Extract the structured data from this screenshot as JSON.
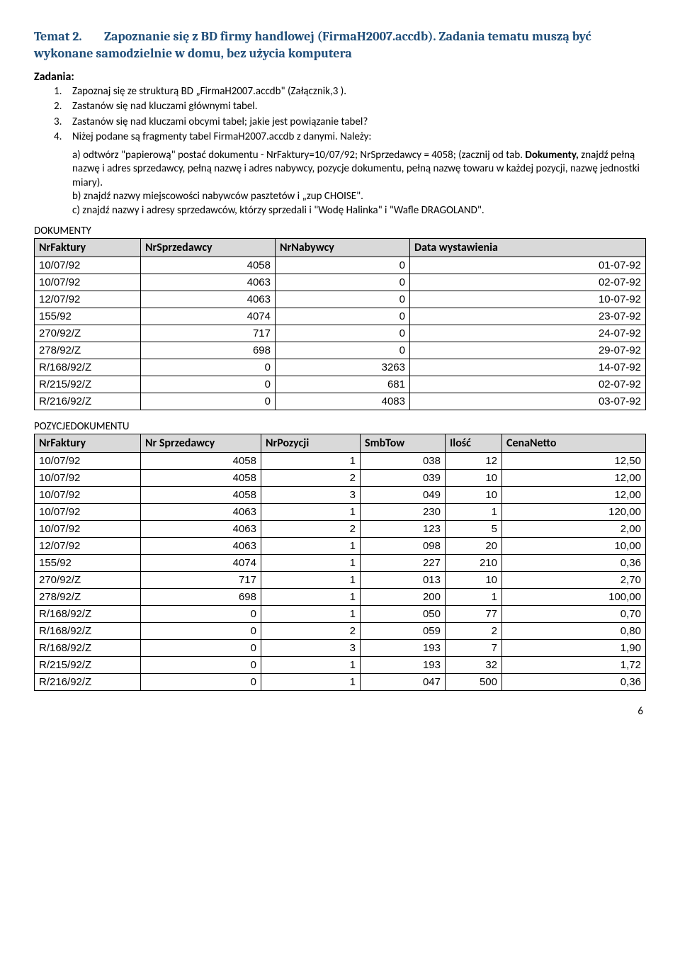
{
  "title": {
    "label": "Temat 2.",
    "heading": "Zapoznanie się z BD firmy handlowej (FirmaH2007.accdb). Zadania tematu muszą być wykonane samodzielnie w domu, bez użycia komputera"
  },
  "zadania_label": "Zadania:",
  "tasks": [
    "Zapoznaj się ze strukturą BD „FirmaH2007.accdb\" (Załącznik,3 ).",
    "Zastanów się nad kluczami głównymi tabel.",
    "Zastanów się nad kluczami obcymi tabel; jakie jest powiązanie tabel?",
    "Niżej podane są fragmenty tabel FirmaH2007.accdb z danymi. Należy:"
  ],
  "task4_body": {
    "a_pre": "a)  odtwórz \"papierową\" postać dokumentu -  NrFaktury=10/07/92;  NrSprzedawcy = 4058; (zacznij od  tab. ",
    "a_bold": "Dokumenty,",
    "a_post": " znajdź pełną nazwę i adres sprzedawcy, pełną nazwę i adres nabywcy, pozycje dokumentu, pełną nazwę towaru w każdej pozycji, nazwę jednostki miary).",
    "b": "b)  znajdź nazwy miejscowości nabywców pasztetów i „zup CHOISE\".",
    "c": "c)  znajdź nazwy i adresy sprzedawców, którzy sprzedali i \"Wodę Halinka\" i \"Wafle DRAGOLAND\"."
  },
  "section_dokumenty": "DOKUMENTY",
  "dokumenty_headers": [
    "NrFaktury",
    "NrSprzedawcy",
    "NrNabywcy",
    "Data wystawienia"
  ],
  "dokumenty_col_widths": [
    "150px",
    "190px",
    "190px",
    "auto"
  ],
  "dokumenty_rows": [
    [
      "10/07/92",
      "4058",
      "0",
      "01-07-92"
    ],
    [
      "10/07/92",
      "4063",
      "0",
      "02-07-92"
    ],
    [
      "12/07/92",
      "4063",
      "0",
      "10-07-92"
    ],
    [
      "155/92",
      "4074",
      "0",
      "23-07-92"
    ],
    [
      "270/92/Z",
      "717",
      "0",
      "24-07-92"
    ],
    [
      "278/92/Z",
      "698",
      "0",
      "29-07-92"
    ],
    [
      "R/168/92/Z",
      "0",
      "3263",
      "14-07-92"
    ],
    [
      "R/215/92/Z",
      "0",
      "681",
      "02-07-92"
    ],
    [
      "R/216/92/Z",
      "0",
      "4083",
      "03-07-92"
    ]
  ],
  "section_pozycje": "POZYCJEDOKUMENTU",
  "pozycje_headers": [
    "NrFaktury",
    "Nr Sprzedawcy",
    "NrPozycji",
    "SmbTow",
    "Ilość",
    "CenaNetto"
  ],
  "pozycje_col_widths": [
    "150px",
    "170px",
    "140px",
    "120px",
    "80px",
    "auto"
  ],
  "pozycje_rows": [
    [
      "10/07/92",
      "4058",
      "1",
      "038",
      "12",
      "12,50"
    ],
    [
      "10/07/92",
      "4058",
      "2",
      "039",
      "10",
      "12,00"
    ],
    [
      "10/07/92",
      "4058",
      "3",
      "049",
      "10",
      "12,00"
    ],
    [
      "10/07/92",
      "4063",
      "1",
      "230",
      "1",
      "120,00"
    ],
    [
      "10/07/92",
      "4063",
      "2",
      "123",
      "5",
      "2,00"
    ],
    [
      "12/07/92",
      "4063",
      "1",
      "098",
      "20",
      "10,00"
    ],
    [
      "155/92",
      "4074",
      "1",
      "227",
      "210",
      "0,36"
    ],
    [
      "270/92/Z",
      "717",
      "1",
      "013",
      "10",
      "2,70"
    ],
    [
      "278/92/Z",
      "698",
      "1",
      "200",
      "1",
      "100,00"
    ],
    [
      "R/168/92/Z",
      "0",
      "1",
      "050",
      "77",
      "0,70"
    ],
    [
      "R/168/92/Z",
      "0",
      "2",
      "059",
      "2",
      "0,80"
    ],
    [
      "R/168/92/Z",
      "0",
      "3",
      "193",
      "7",
      "1,90"
    ],
    [
      "R/215/92/Z",
      "0",
      "1",
      "193",
      "32",
      "1,72"
    ],
    [
      "R/216/92/Z",
      "0",
      "1",
      "047",
      "500",
      "0,36"
    ]
  ],
  "page_number": "6"
}
